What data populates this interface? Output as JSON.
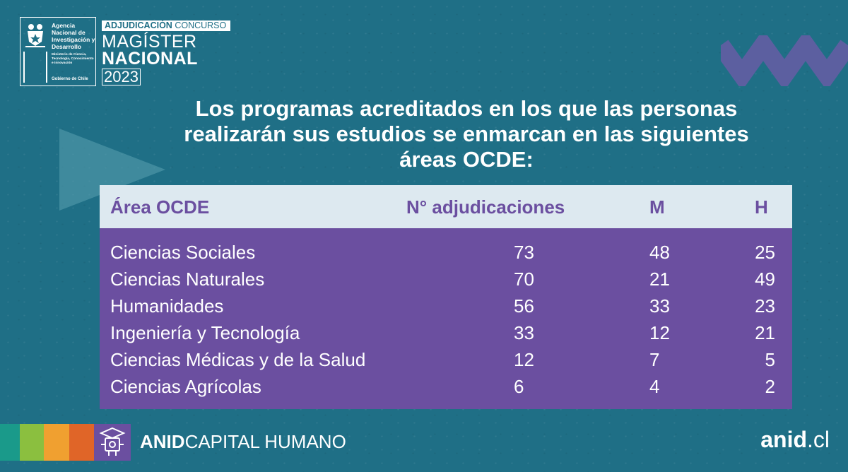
{
  "logo": {
    "agency": "Agencia Nacional de Investigación y Desarrollo",
    "ministry": "Ministerio de Ciencia, Tecnología, Conocimiento e Innovación",
    "government": "Gobierno de Chile"
  },
  "contest": {
    "banner_bold": "ADJUDICACIÓN",
    "banner_rest": " CONCURSO",
    "line1": "MAGÍSTER",
    "line2": "NACIONAL",
    "year": "2023"
  },
  "heading": "Los programas acreditados en los que las personas realizarán sus estudios se enmarcan en las siguientes áreas OCDE:",
  "table": {
    "headers": [
      "Área OCDE",
      "N° adjudicaciones",
      "M",
      "H"
    ],
    "rows": [
      {
        "area": "Ciencias Sociales",
        "n": "73",
        "m": "48",
        "h": "25"
      },
      {
        "area": "Ciencias Naturales",
        "n": "70",
        "m": "21",
        "h": "49"
      },
      {
        "area": "Humanidades",
        "n": "56",
        "m": "33",
        "h": "23"
      },
      {
        "area": "Ingeniería y Tecnología",
        "n": "33",
        "m": "12",
        "h": "21"
      },
      {
        "area": "Ciencias Médicas y de la Salud",
        "n": "12",
        "m": "7",
        "h": "5"
      },
      {
        "area": "Ciencias Agrícolas",
        "n": "6",
        "m": "4",
        "h": "2"
      }
    ]
  },
  "footer": {
    "brand_bold": "ANID",
    "brand_rest": "CAPITAL HUMANO",
    "site_bold": "anid",
    "site_rest": ".cl",
    "icon": "graduate-robot-icon"
  },
  "colors": {
    "background": "#1f6f86",
    "purple": "#6b4fa0",
    "header_light": "#dde9f0",
    "stripe_teal": "#1a9a8a",
    "stripe_green": "#8bbf3f",
    "stripe_orange": "#f0a030",
    "stripe_red": "#e06528"
  }
}
